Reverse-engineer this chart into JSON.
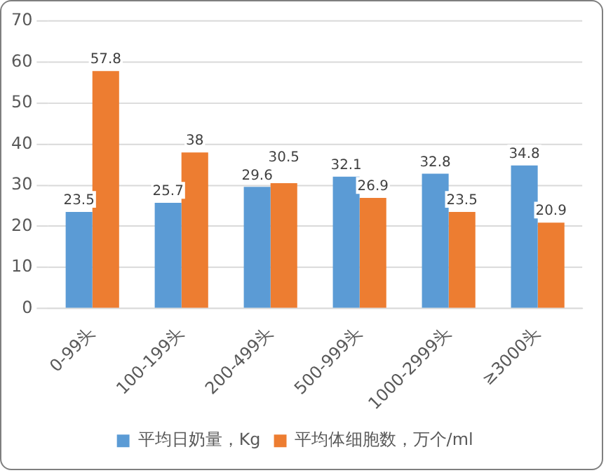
{
  "chart_data": {
    "type": "bar",
    "categories": [
      "0-99头",
      "100-199头",
      "200-499头",
      "500-999头",
      "1000-2999头",
      "≥3000头"
    ],
    "series": [
      {
        "name": "平均日奶量，Kg",
        "color": "#5b9bd5",
        "values": [
          23.5,
          25.7,
          29.6,
          32.1,
          32.8,
          34.8
        ]
      },
      {
        "name": "平均体细胞数，万个/ml",
        "color": "#ed7d31",
        "values": [
          57.8,
          38,
          30.5,
          26.9,
          23.5,
          20.9
        ]
      }
    ],
    "ylim": [
      0,
      70
    ],
    "yticks": [
      0,
      10,
      20,
      30,
      40,
      50,
      60,
      70
    ],
    "grid": "y",
    "legend": "bottom",
    "data_labels": true
  }
}
